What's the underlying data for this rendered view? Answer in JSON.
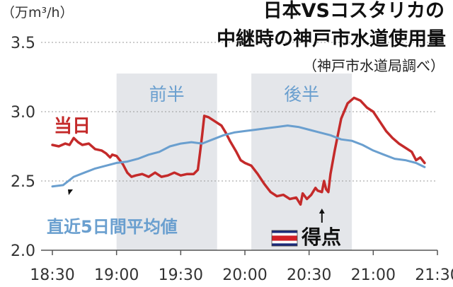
{
  "chart_data": {
    "type": "line",
    "title_lines": [
      "日本VSコスタリカの",
      "中継時の神戸市水道使用量"
    ],
    "source": "（神戸市水道局調べ）",
    "unit_label": "（万m³/h）",
    "x_ticks": [
      "18:30",
      "19:00",
      "19:30",
      "20:00",
      "20:30",
      "21:00",
      "21:30"
    ],
    "y_ticks": [
      "2.0",
      "2.5",
      "3.0",
      "3.5"
    ],
    "ylim": [
      2.0,
      3.5
    ],
    "xlim_minutes": [
      0,
      180
    ],
    "grid": true,
    "shaded_regions": [
      {
        "label": "前半",
        "from": "19:00",
        "to": "19:47"
      },
      {
        "label": "後半",
        "from": "20:03",
        "to": "20:50"
      }
    ],
    "annotation": {
      "label": "得点",
      "time": "20:36"
    },
    "flag_colors": [
      "#1a2a7a",
      "#ffffff",
      "#d21f26",
      "#ffffff",
      "#1a2a7a"
    ],
    "series": [
      {
        "name": "当日",
        "color": "#c42a2a",
        "points": [
          [
            0,
            2.76
          ],
          [
            3,
            2.75
          ],
          [
            6,
            2.77
          ],
          [
            8,
            2.76
          ],
          [
            10,
            2.81
          ],
          [
            12,
            2.78
          ],
          [
            14,
            2.76
          ],
          [
            17,
            2.77
          ],
          [
            20,
            2.73
          ],
          [
            23,
            2.72
          ],
          [
            25,
            2.7
          ],
          [
            27,
            2.67
          ],
          [
            28,
            2.69
          ],
          [
            30,
            2.68
          ],
          [
            31,
            2.66
          ],
          [
            33,
            2.62
          ],
          [
            35,
            2.56
          ],
          [
            37,
            2.53
          ],
          [
            39,
            2.54
          ],
          [
            42,
            2.55
          ],
          [
            45,
            2.53
          ],
          [
            48,
            2.56
          ],
          [
            51,
            2.53
          ],
          [
            54,
            2.54
          ],
          [
            57,
            2.56
          ],
          [
            60,
            2.54
          ],
          [
            63,
            2.55
          ],
          [
            66,
            2.55
          ],
          [
            68,
            2.58
          ],
          [
            69,
            2.7
          ],
          [
            70,
            2.83
          ],
          [
            71,
            2.97
          ],
          [
            73,
            2.96
          ],
          [
            76,
            2.93
          ],
          [
            79,
            2.9
          ],
          [
            81,
            2.85
          ],
          [
            83,
            2.79
          ],
          [
            86,
            2.71
          ],
          [
            88,
            2.65
          ],
          [
            90,
            2.63
          ],
          [
            93,
            2.61
          ],
          [
            96,
            2.55
          ],
          [
            99,
            2.48
          ],
          [
            102,
            2.42
          ],
          [
            105,
            2.39
          ],
          [
            108,
            2.4
          ],
          [
            111,
            2.37
          ],
          [
            114,
            2.38
          ],
          [
            116,
            2.33
          ],
          [
            117,
            2.41
          ],
          [
            119,
            2.37
          ],
          [
            121,
            2.4
          ],
          [
            123,
            2.45
          ],
          [
            124,
            2.43
          ],
          [
            126,
            2.42
          ],
          [
            127,
            2.5
          ],
          [
            128,
            2.44
          ],
          [
            129,
            2.42
          ],
          [
            130,
            2.55
          ],
          [
            132,
            2.72
          ],
          [
            135,
            2.95
          ],
          [
            138,
            3.06
          ],
          [
            141,
            3.1
          ],
          [
            144,
            3.08
          ],
          [
            147,
            3.03
          ],
          [
            150,
            3.0
          ],
          [
            153,
            2.93
          ],
          [
            156,
            2.86
          ],
          [
            159,
            2.81
          ],
          [
            162,
            2.77
          ],
          [
            165,
            2.74
          ],
          [
            168,
            2.71
          ],
          [
            170,
            2.65
          ],
          [
            172,
            2.67
          ],
          [
            174,
            2.63
          ]
        ]
      },
      {
        "name": "直近5日間平均値",
        "color": "#6a9fcf",
        "points": [
          [
            0,
            2.46
          ],
          [
            5,
            2.47
          ],
          [
            10,
            2.53
          ],
          [
            15,
            2.56
          ],
          [
            20,
            2.59
          ],
          [
            25,
            2.61
          ],
          [
            30,
            2.63
          ],
          [
            35,
            2.64
          ],
          [
            40,
            2.66
          ],
          [
            45,
            2.69
          ],
          [
            50,
            2.71
          ],
          [
            55,
            2.75
          ],
          [
            60,
            2.77
          ],
          [
            65,
            2.78
          ],
          [
            70,
            2.77
          ],
          [
            75,
            2.8
          ],
          [
            80,
            2.83
          ],
          [
            85,
            2.85
          ],
          [
            90,
            2.86
          ],
          [
            95,
            2.87
          ],
          [
            100,
            2.88
          ],
          [
            105,
            2.89
          ],
          [
            110,
            2.9
          ],
          [
            115,
            2.89
          ],
          [
            120,
            2.87
          ],
          [
            125,
            2.85
          ],
          [
            130,
            2.83
          ],
          [
            135,
            2.8
          ],
          [
            140,
            2.79
          ],
          [
            145,
            2.76
          ],
          [
            150,
            2.72
          ],
          [
            155,
            2.69
          ],
          [
            160,
            2.66
          ],
          [
            165,
            2.65
          ],
          [
            170,
            2.63
          ],
          [
            174,
            2.6
          ]
        ]
      }
    ]
  }
}
